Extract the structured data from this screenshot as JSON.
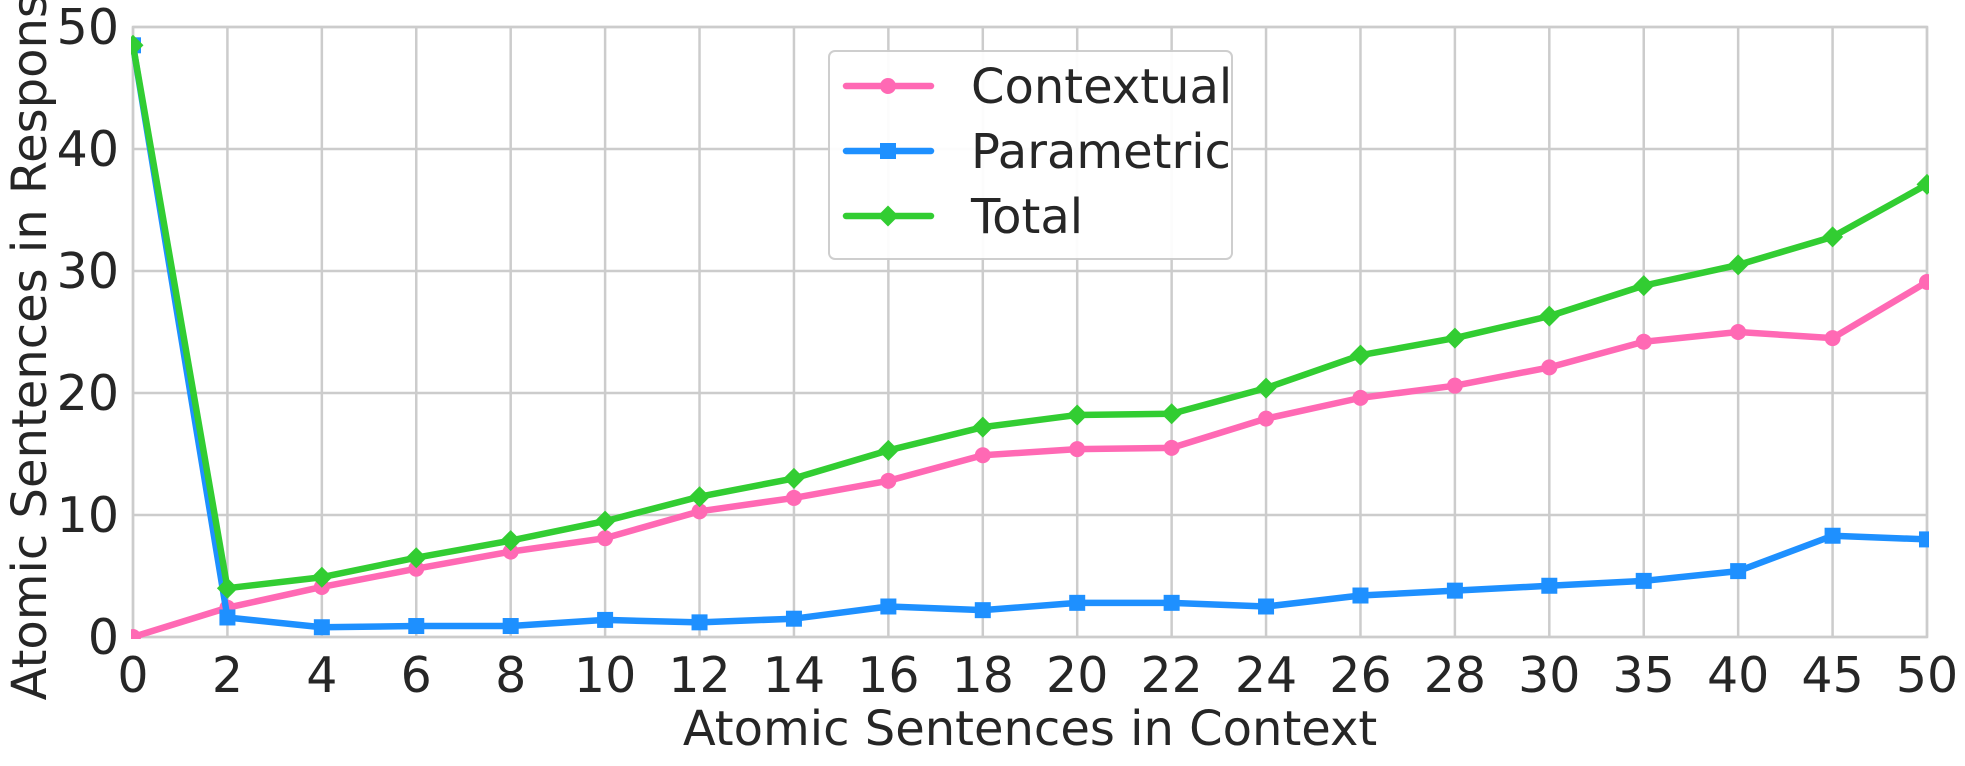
{
  "chart_data": {
    "type": "line",
    "title": "",
    "xlabel": "Atomic Sentences in Context",
    "ylabel": "Atomic Sentences in Response",
    "categories": [
      "0",
      "2",
      "4",
      "6",
      "8",
      "10",
      "12",
      "14",
      "16",
      "18",
      "20",
      "22",
      "24",
      "26",
      "28",
      "30",
      "35",
      "40",
      "45",
      "50"
    ],
    "ylim": [
      0,
      50
    ],
    "yticks": [
      0,
      10,
      20,
      30,
      40,
      50
    ],
    "grid": true,
    "legend_position": "top-center",
    "series": [
      {
        "name": "Contextual",
        "color": "#ff69b4",
        "marker": "circle",
        "values": [
          0.0,
          2.4,
          4.1,
          5.6,
          7.0,
          8.1,
          10.3,
          11.4,
          12.8,
          14.9,
          15.4,
          15.5,
          17.9,
          19.6,
          20.6,
          22.1,
          24.2,
          25.0,
          24.5,
          29.1
        ]
      },
      {
        "name": "Parametric",
        "color": "#1e90ff",
        "marker": "square",
        "values": [
          48.5,
          1.6,
          0.8,
          0.9,
          0.9,
          1.4,
          1.2,
          1.5,
          2.5,
          2.2,
          2.8,
          2.8,
          2.5,
          3.4,
          3.8,
          4.2,
          4.6,
          5.4,
          8.3,
          8.0
        ]
      },
      {
        "name": "Total",
        "color": "#32cd32",
        "marker": "diamond",
        "values": [
          48.5,
          4.0,
          4.9,
          6.5,
          7.9,
          9.5,
          11.5,
          13.0,
          15.3,
          17.2,
          18.2,
          18.3,
          20.4,
          23.1,
          24.5,
          26.3,
          28.8,
          30.5,
          32.8,
          37.1
        ]
      }
    ]
  }
}
